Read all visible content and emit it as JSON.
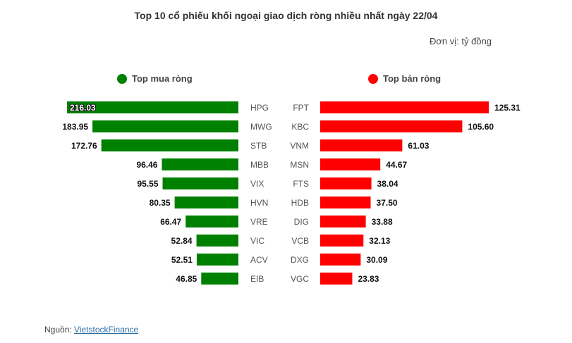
{
  "chart_data": {
    "type": "bar",
    "title": "Top 10 cổ phiếu khối ngoại giao dịch ròng nhiều nhất ngày 22/04",
    "unit_label": "Đơn vị: tỷ đồng",
    "buy": {
      "legend": "Top mua ròng",
      "color": "#008000",
      "categories": [
        "HPG",
        "MWG",
        "STB",
        "MBB",
        "VIX",
        "HVN",
        "VRE",
        "VIC",
        "ACV",
        "EIB"
      ],
      "values": [
        216.03,
        183.95,
        172.76,
        96.46,
        95.55,
        80.35,
        66.47,
        52.84,
        52.51,
        46.85
      ],
      "labels": [
        "216.03",
        "183.95",
        "172.76",
        "96.46",
        "95.55",
        "80.35",
        "66.47",
        "52.84",
        "52.51",
        "46.85"
      ]
    },
    "sell": {
      "legend": "Top bán ròng",
      "color": "#ff0000",
      "categories": [
        "FPT",
        "KBC",
        "VNM",
        "MSN",
        "FTS",
        "HDB",
        "DIG",
        "VCB",
        "DXG",
        "VGC"
      ],
      "values": [
        125.31,
        105.6,
        61.03,
        44.67,
        38.04,
        37.5,
        33.88,
        32.13,
        30.09,
        23.83
      ],
      "labels": [
        "125.31",
        "105.60",
        "61.03",
        "44.67",
        "38.04",
        "37.50",
        "33.88",
        "32.13",
        "30.09",
        "23.83"
      ]
    }
  },
  "source": {
    "prefix": "Nguồn: ",
    "link_text": "VietstockFinance"
  }
}
